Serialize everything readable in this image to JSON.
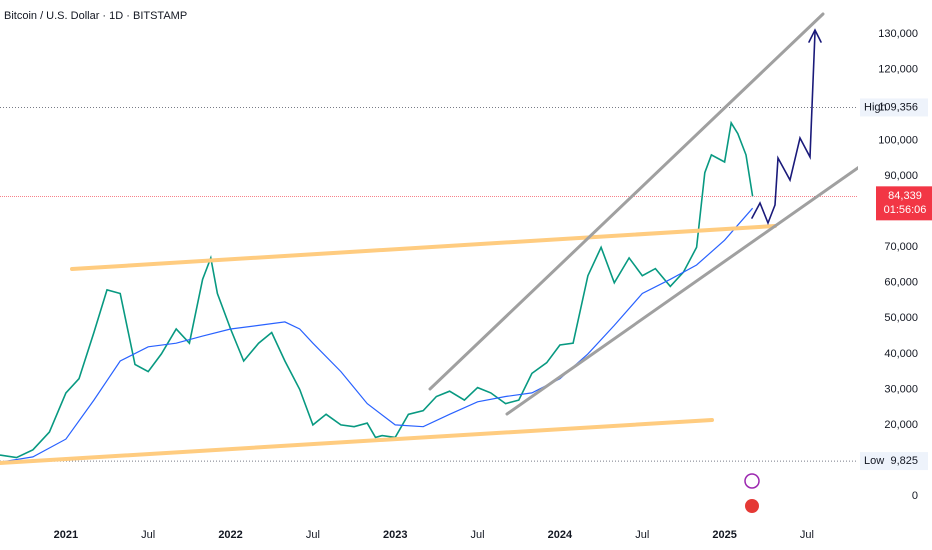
{
  "chart_data": {
    "type": "line",
    "title": "Bitcoin / U.S. Dollar · 1D · BITSTAMP",
    "xlim": [
      2020.6,
      2025.81
    ],
    "ylim": [
      -6760,
      139600
    ],
    "xticks": [
      2021,
      {
        "value": 2021.5,
        "label": "Jul"
      },
      2022,
      {
        "value": 2022.5,
        "label": "Jul"
      },
      2023,
      {
        "value": 2023.5,
        "label": "Jul"
      },
      2024,
      {
        "value": 2024.5,
        "label": "Jul"
      },
      2025,
      {
        "value": 2025.5,
        "label": "Jul"
      }
    ],
    "yticks": [
      {
        "value": 130000,
        "label": "130,000"
      },
      {
        "value": 120000,
        "label": "120,000"
      },
      {
        "value": 100000,
        "label": "100,000"
      },
      {
        "value": 90000,
        "label": "90,000"
      },
      {
        "value": 70000,
        "label": "70,000"
      },
      {
        "value": 60000,
        "label": "60,000"
      },
      {
        "value": 50000,
        "label": "50,000"
      },
      {
        "value": 40000,
        "label": "40,000"
      },
      {
        "value": 30000,
        "label": "30,000"
      },
      {
        "value": 20000,
        "label": "20,000"
      },
      0
    ],
    "grid": true,
    "series": [
      {
        "color": "#089981",
        "x": [
          2020.6,
          2020.7,
          2020.8,
          2020.9,
          2021.0,
          2021.08,
          2021.17,
          2021.25,
          2021.33,
          2021.42,
          2021.5,
          2021.58,
          2021.67,
          2021.75,
          2021.83,
          2021.88,
          2021.92,
          2022.0,
          2022.08,
          2022.17,
          2022.25,
          2022.33,
          2022.42,
          2022.5,
          2022.58,
          2022.67,
          2022.75,
          2022.83,
          2022.88,
          2022.92,
          2023.0,
          2023.08,
          2023.17,
          2023.25,
          2023.33,
          2023.42,
          2023.5,
          2023.58,
          2023.67,
          2023.75,
          2023.83,
          2023.92,
          2024.0,
          2024.08,
          2024.17,
          2024.25,
          2024.33,
          2024.42,
          2024.5,
          2024.58,
          2024.67,
          2024.75,
          2024.83,
          2024.88,
          2024.92,
          2025.0,
          2025.04,
          2025.08,
          2025.13,
          2025.17
        ],
        "values": [
          11500,
          10800,
          13000,
          18000,
          29000,
          33000,
          46000,
          58000,
          57000,
          37000,
          35000,
          40000,
          47000,
          43000,
          61000,
          67000,
          57000,
          47000,
          38000,
          43000,
          46000,
          38000,
          30000,
          20000,
          23000,
          20000,
          19500,
          20500,
          16500,
          17000,
          16500,
          23000,
          24000,
          28000,
          29500,
          27000,
          30500,
          29000,
          26000,
          27000,
          34500,
          37500,
          42500,
          43000,
          62000,
          70000,
          60000,
          67000,
          62000,
          64000,
          59000,
          63000,
          70000,
          91000,
          96000,
          94000,
          105000,
          102000,
          96000,
          84339
        ]
      },
      {
        "color": "#2962ff",
        "x": [
          2020.6,
          2020.8,
          2021.0,
          2021.17,
          2021.33,
          2021.5,
          2021.67,
          2021.83,
          2022.0,
          2022.17,
          2022.33,
          2022.42,
          2022.5,
          2022.67,
          2022.83,
          2023.0,
          2023.17,
          2023.33,
          2023.5,
          2023.67,
          2023.83,
          2024.0,
          2024.17,
          2024.33,
          2024.5,
          2024.67,
          2024.83,
          2025.0,
          2025.17
        ],
        "values": [
          9500,
          11000,
          16000,
          27000,
          38000,
          42000,
          43000,
          45000,
          47000,
          48000,
          49000,
          47000,
          43000,
          35000,
          26000,
          20000,
          19500,
          23000,
          26500,
          28000,
          29000,
          33000,
          40000,
          48000,
          57000,
          61000,
          65000,
          72000,
          81000
        ]
      }
    ],
    "high": {
      "name": "High",
      "value": 109356,
      "label": "109,356"
    },
    "low": {
      "name": "Low",
      "value": 9825,
      "label": "9,825"
    },
    "last": {
      "value": 84339,
      "label": "84,339",
      "countdown": "01:56:06"
    }
  }
}
